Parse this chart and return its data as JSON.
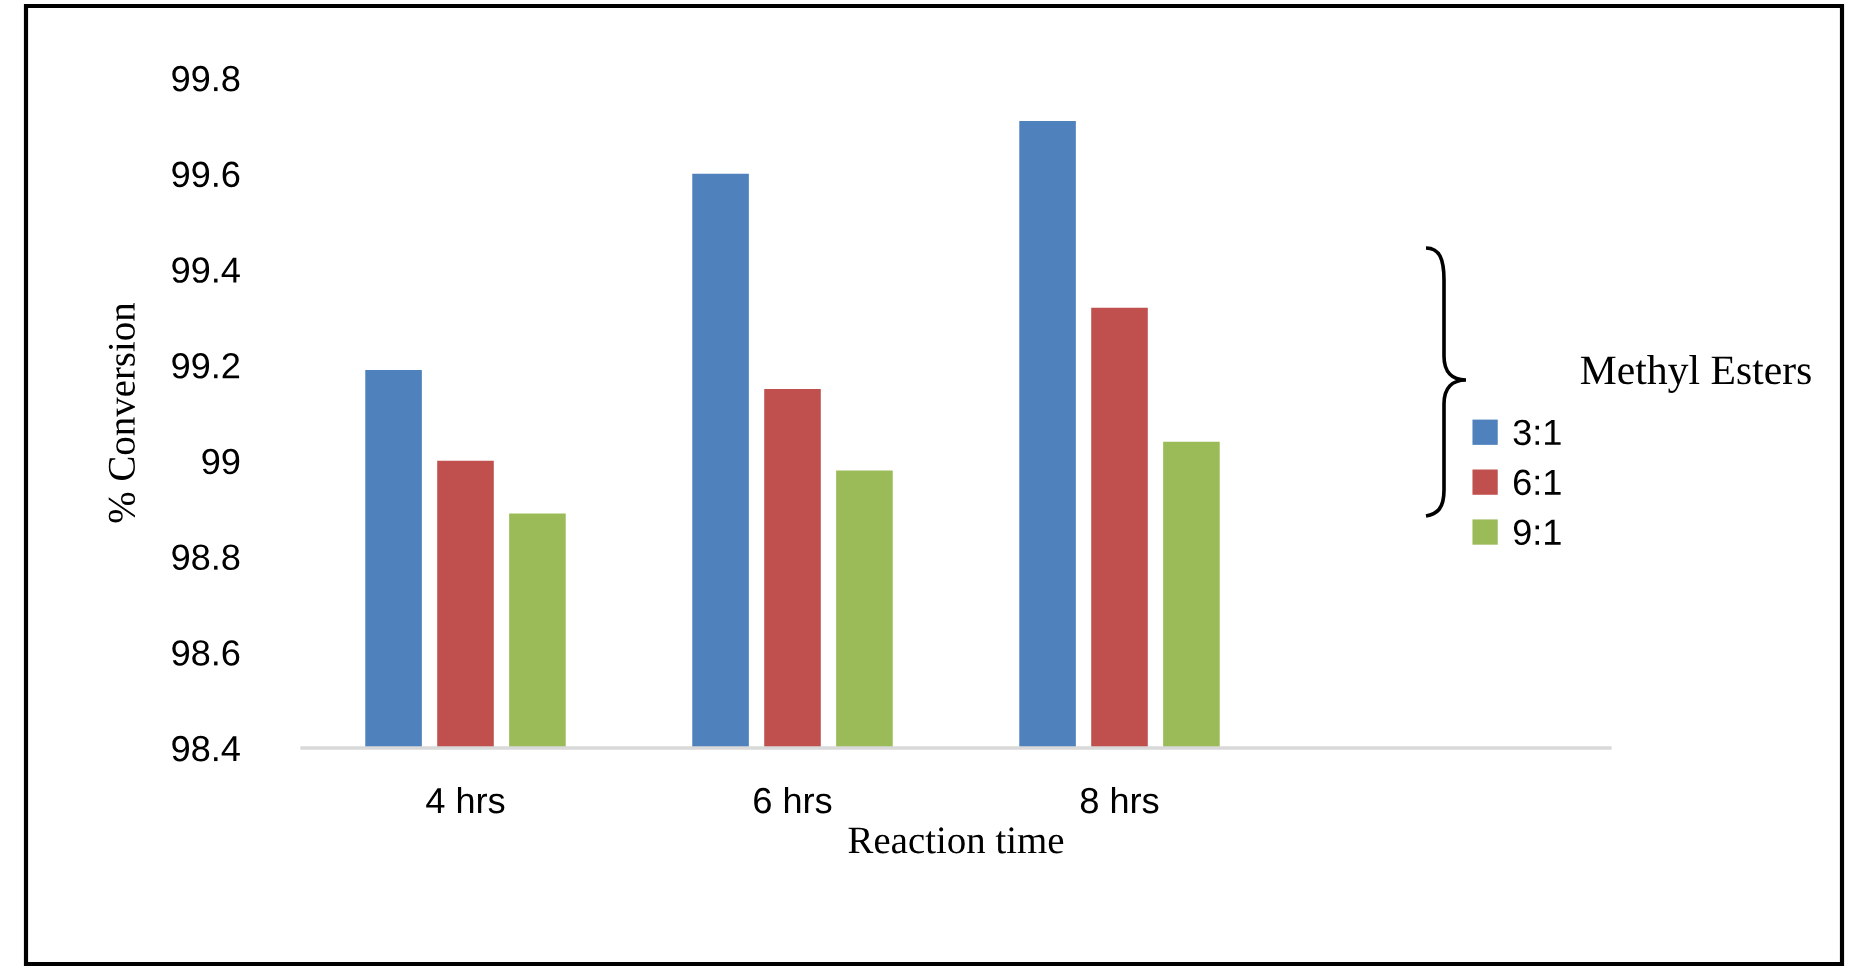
{
  "chart_data": {
    "type": "bar",
    "xlabel": "Reaction time",
    "ylabel": "% Conversion",
    "categories": [
      "4 hrs",
      "6 hrs",
      "8 hrs",
      null
    ],
    "series": [
      {
        "name": "3:1",
        "color": "#4f81bd",
        "values": [
          99.19,
          99.6,
          99.71,
          null
        ]
      },
      {
        "name": "6:1",
        "color": "#c0504d",
        "values": [
          99.0,
          99.15,
          99.32,
          null
        ]
      },
      {
        "name": "9:1",
        "color": "#9bbb59",
        "values": [
          98.89,
          98.98,
          99.04,
          null
        ]
      }
    ],
    "ylim": [
      98.4,
      99.8
    ],
    "yticks": [
      {
        "value": 98.4,
        "label": "98.4"
      },
      {
        "value": 98.6,
        "label": "98.6"
      },
      {
        "value": 98.8,
        "label": "98.8"
      },
      {
        "value": 99.0,
        "label": "99"
      },
      {
        "value": 99.2,
        "label": "99.2"
      },
      {
        "value": 99.4,
        "label": "99.4"
      },
      {
        "value": 99.6,
        "label": "99.6"
      },
      {
        "value": 99.8,
        "label": "99.8"
      }
    ],
    "annotations": [
      "Methyl Esters"
    ],
    "grid": false,
    "legend": "right"
  }
}
